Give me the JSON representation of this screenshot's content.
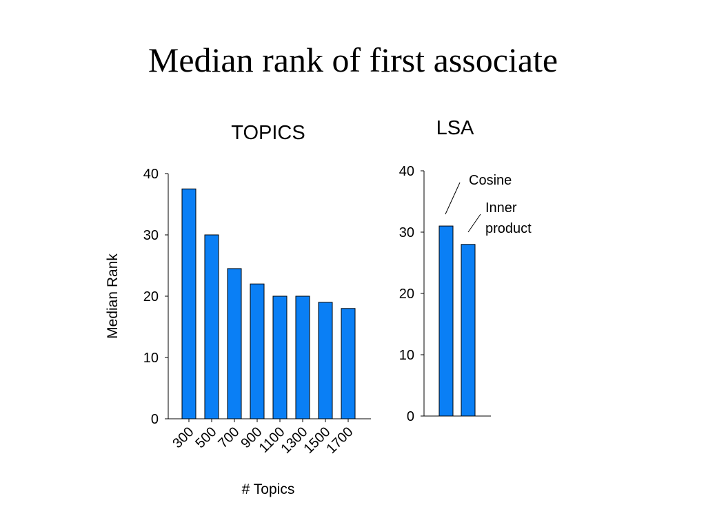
{
  "title": "Median rank of first associate",
  "colors": {
    "bar_fill": "#0a7ff5",
    "axis": "#000000",
    "text": "#000000"
  },
  "chart_data": [
    {
      "type": "bar",
      "title": "TOPICS",
      "categories": [
        "300",
        "500",
        "700",
        "900",
        "1100",
        "1300",
        "1500",
        "1700"
      ],
      "values": [
        37.5,
        30,
        24.5,
        22,
        20,
        20,
        19,
        18
      ],
      "xlabel": "# Topics",
      "ylabel": "Median Rank",
      "ylim": [
        0,
        40
      ],
      "yticks": [
        "0",
        "10",
        "20",
        "30",
        "40"
      ],
      "grid": false,
      "legend": "none"
    },
    {
      "type": "bar",
      "title": "LSA",
      "categories": [
        "Cosine",
        "Inner product"
      ],
      "values": [
        31,
        28
      ],
      "xlabel": "",
      "ylabel": "",
      "ylim": [
        0,
        40
      ],
      "yticks": [
        "0",
        "10",
        "20",
        "30",
        "40"
      ],
      "annotations": [
        {
          "text": [
            "Cosine"
          ],
          "target": "Cosine"
        },
        {
          "text": [
            "Inner",
            "product"
          ],
          "target": "Inner product"
        }
      ],
      "grid": false,
      "legend": "none"
    }
  ]
}
